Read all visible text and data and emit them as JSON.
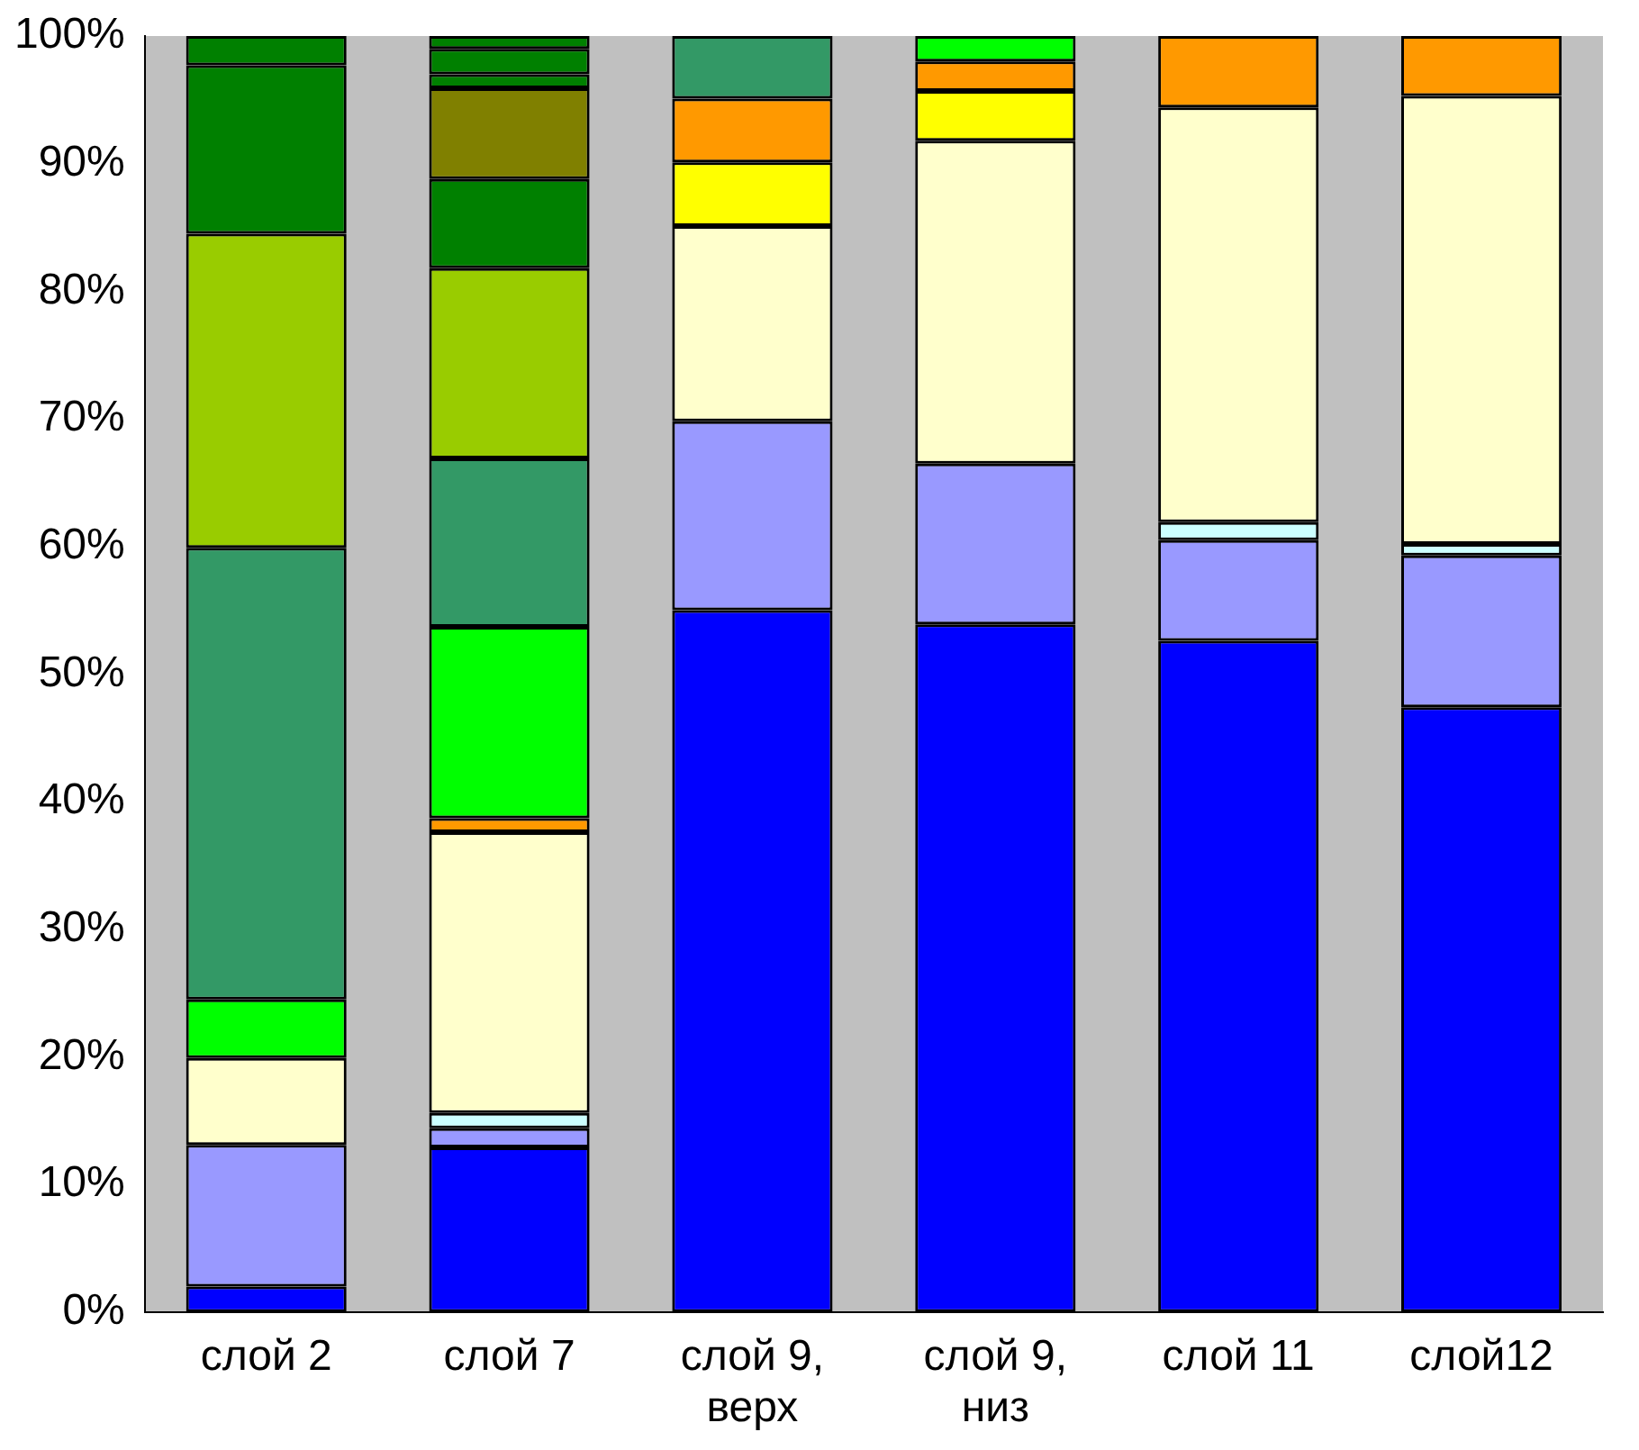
{
  "chart_data": {
    "type": "bar",
    "stacked": true,
    "categories": [
      "слой 2",
      "слой 7",
      "слой 9, верх",
      "слой 9, низ",
      "слой 11",
      "слой12"
    ],
    "ylim": [
      0,
      100
    ],
    "yticks": [
      {
        "value": 0,
        "label": "0%"
      },
      {
        "value": 10,
        "label": "10%"
      },
      {
        "value": 20,
        "label": "20%"
      },
      {
        "value": 30,
        "label": "30%"
      },
      {
        "value": 40,
        "label": "40%"
      },
      {
        "value": 50,
        "label": "50%"
      },
      {
        "value": 60,
        "label": "60%"
      },
      {
        "value": 70,
        "label": "70%"
      },
      {
        "value": 80,
        "label": "80%"
      },
      {
        "value": 90,
        "label": "90%"
      },
      {
        "value": 100,
        "label": "100%"
      }
    ],
    "grid": false,
    "legend": false,
    "series": [
      {
        "color": "#0000ff",
        "values": [
          2.0,
          12.9,
          55.0,
          53.9,
          52.6,
          47.4
        ]
      },
      {
        "color": "#9999ff",
        "values": [
          11.1,
          1.5,
          14.8,
          12.6,
          7.9,
          11.9
        ]
      },
      {
        "color": "#ccffff",
        "values": [
          null,
          1.2,
          null,
          null,
          1.4,
          0.9
        ]
      },
      {
        "color": "#ffffcc",
        "values": [
          6.8,
          22.0,
          15.3,
          25.3,
          32.5,
          35.1
        ]
      },
      {
        "color": "#ffff00",
        "values": [
          null,
          null,
          5.0,
          3.9,
          null,
          null
        ]
      },
      {
        "color": "#ff9900",
        "values": [
          null,
          1.1,
          5.0,
          2.3,
          5.6,
          4.7
        ]
      },
      {
        "color": "#00ff00",
        "values": [
          4.6,
          15.0,
          null,
          2.0,
          null,
          null
        ]
      },
      {
        "color": "#339966",
        "values": [
          35.4,
          13.2,
          4.9,
          null,
          null,
          null
        ]
      },
      {
        "color": "#99cc00",
        "values": [
          24.6,
          14.9,
          null,
          null,
          null,
          null
        ]
      },
      {
        "color": "#008000",
        "values": [
          13.2,
          7.0,
          null,
          null,
          null,
          null
        ]
      },
      {
        "color": "#808000",
        "values": [
          null,
          7.1,
          null,
          null,
          null,
          null
        ]
      },
      {
        "color": "#008000",
        "values": [
          null,
          1.1,
          null,
          null,
          null,
          null
        ]
      },
      {
        "color": "#008000",
        "values": [
          null,
          2.0,
          null,
          null,
          null,
          null
        ]
      },
      {
        "color": "#008000",
        "values": [
          2.3,
          1.0,
          null,
          null,
          null,
          null
        ]
      }
    ]
  }
}
